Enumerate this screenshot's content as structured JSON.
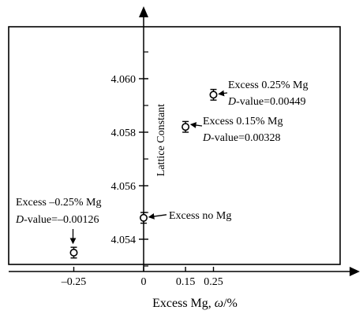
{
  "chart_data": {
    "type": "scatter",
    "xlabel_main": "Excess Mg, ",
    "xlabel_omega": "ω",
    "xlabel_unit": "/%",
    "ylabel": "Lattice Constant",
    "xlim": [
      -0.55,
      0.85
    ],
    "ylim": [
      4.0529,
      4.0619
    ],
    "x_ticks": [
      {
        "value": -0.25,
        "label": "–0.25"
      },
      {
        "value": 0,
        "label": "0"
      },
      {
        "value": 0.15,
        "label": "0.15"
      },
      {
        "value": 0.25,
        "label": "0.25"
      }
    ],
    "y_ticks": [
      {
        "value": 4.054,
        "label": "4.054"
      },
      {
        "value": 4.056,
        "label": "4.056"
      },
      {
        "value": 4.058,
        "label": "4.058"
      },
      {
        "value": 4.06,
        "label": "4.060"
      }
    ],
    "points": [
      {
        "x": -0.25,
        "y": 4.0535,
        "err": 0.0002,
        "label1": "Excess –0.25% Mg",
        "d_italic": "D",
        "d_rest": "-value=–0.00126"
      },
      {
        "x": 0,
        "y": 4.0548,
        "err": 0.0002,
        "label1": "Excess no Mg",
        "d_italic": "",
        "d_rest": ""
      },
      {
        "x": 0.15,
        "y": 4.0582,
        "err": 0.0002,
        "label1": "Excess 0.15% Mg",
        "d_italic": "D",
        "d_rest": "-value=0.00328"
      },
      {
        "x": 0.25,
        "y": 4.0594,
        "err": 0.0002,
        "label1": "Excess 0.25% Mg",
        "d_italic": "D",
        "d_rest": "-value=0.00449"
      }
    ]
  }
}
